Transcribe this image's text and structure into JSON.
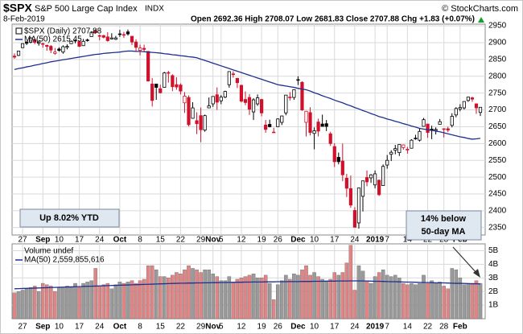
{
  "header": {
    "symbol": "$SPX",
    "name": "S&P 500 Large Cap Index",
    "exchange": "INDX",
    "date": "8-Feb-2019",
    "quote": "Open 2692.36 High 2708.07 Low 2681.83 Close 2707.88 Chg +1.83 (+0.07%)",
    "credit": "© StockCharts.com"
  },
  "chart_data": {
    "type": "candlestick",
    "legend": "$SPX (Daily) 2707.88",
    "up_color": "#000000",
    "down_color": "#d0112b",
    "x": [
      "2018-08-23",
      "2018-08-24",
      "2018-08-27",
      "2018-08-28",
      "2018-08-29",
      "2018-08-30",
      "2018-08-31",
      "2018-09-04",
      "2018-09-05",
      "2018-09-06",
      "2018-09-07",
      "2018-09-10",
      "2018-09-11",
      "2018-09-12",
      "2018-09-13",
      "2018-09-14",
      "2018-09-17",
      "2018-09-18",
      "2018-09-19",
      "2018-09-20",
      "2018-09-21",
      "2018-09-24",
      "2018-09-25",
      "2018-09-26",
      "2018-09-27",
      "2018-09-28",
      "2018-10-01",
      "2018-10-02",
      "2018-10-03",
      "2018-10-04",
      "2018-10-05",
      "2018-10-08",
      "2018-10-09",
      "2018-10-10",
      "2018-10-11",
      "2018-10-12",
      "2018-10-15",
      "2018-10-16",
      "2018-10-17",
      "2018-10-18",
      "2018-10-19",
      "2018-10-22",
      "2018-10-23",
      "2018-10-24",
      "2018-10-25",
      "2018-10-26",
      "2018-10-29",
      "2018-10-30",
      "2018-10-31",
      "2018-11-01",
      "2018-11-02",
      "2018-11-05",
      "2018-11-06",
      "2018-11-07",
      "2018-11-08",
      "2018-11-09",
      "2018-11-12",
      "2018-11-13",
      "2018-11-14",
      "2018-11-15",
      "2018-11-16",
      "2018-11-19",
      "2018-11-20",
      "2018-11-21",
      "2018-11-23",
      "2018-11-26",
      "2018-11-27",
      "2018-11-28",
      "2018-11-29",
      "2018-11-30",
      "2018-12-03",
      "2018-12-04",
      "2018-12-06",
      "2018-12-07",
      "2018-12-10",
      "2018-12-11",
      "2018-12-12",
      "2018-12-13",
      "2018-12-14",
      "2018-12-17",
      "2018-12-18",
      "2018-12-19",
      "2018-12-20",
      "2018-12-21",
      "2018-12-24",
      "2018-12-26",
      "2018-12-27",
      "2018-12-28",
      "2018-12-31",
      "2019-01-02",
      "2019-01-03",
      "2019-01-04",
      "2019-01-07",
      "2019-01-08",
      "2019-01-09",
      "2019-01-10",
      "2019-01-11",
      "2019-01-14",
      "2019-01-15",
      "2019-01-16",
      "2019-01-17",
      "2019-01-18",
      "2019-01-22",
      "2019-01-23",
      "2019-01-24",
      "2019-01-25",
      "2019-01-28",
      "2019-01-29",
      "2019-01-30",
      "2019-01-31",
      "2019-02-01",
      "2019-02-04",
      "2019-02-05",
      "2019-02-06",
      "2019-02-07",
      "2019-02-08"
    ],
    "open": [
      2860,
      2862,
      2885,
      2902,
      2901,
      2908,
      2898,
      2897,
      2892,
      2889,
      2868,
      2881,
      2872,
      2886,
      2897,
      2907,
      2903,
      2891,
      2906,
      2918,
      2936,
      2921,
      2921,
      2917,
      2911,
      2910,
      2926,
      2924,
      2932,
      2919,
      2902,
      2877,
      2883,
      2874,
      2777,
      2777,
      2763,
      2767,
      2811,
      2802,
      2775,
      2774,
      2721,
      2737,
      2675,
      2668,
      2683,
      2640,
      2706,
      2718,
      2745,
      2727,
      2738,
      2775,
      2806,
      2794,
      2773,
      2731,
      2737,
      2694,
      2718,
      2731,
      2655,
      2657,
      2634,
      2650,
      2663,
      2691,
      2736,
      2737,
      2790,
      2782,
      2663,
      2692,
      2630,
      2664,
      2658,
      2659,
      2629,
      2591,
      2559,
      2548,
      2497,
      2466,
      2401,
      2364,
      2443,
      2499,
      2498,
      2477,
      2491,
      2475,
      2536,
      2568,
      2580,
      2573,
      2588,
      2581,
      2586,
      2614,
      2610,
      2651,
      2658,
      2643,
      2639,
      2657,
      2644,
      2644,
      2654,
      2685,
      2703,
      2706,
      2728,
      2736,
      2718,
      2692.36
    ],
    "high": [
      2868,
      2876,
      2898,
      2904,
      2916,
      2912,
      2907,
      2900,
      2894,
      2893,
      2884,
      2886,
      2892,
      2895,
      2906,
      2909,
      2905,
      2911,
      2912,
      2934,
      2940,
      2924,
      2923,
      2931,
      2928,
      2920,
      2938,
      2932,
      2939,
      2919,
      2910,
      2894,
      2894,
      2874,
      2795,
      2777,
      2775,
      2813,
      2816,
      2806,
      2797,
      2779,
      2753,
      2743,
      2723,
      2693,
      2707,
      2686,
      2737,
      2741,
      2767,
      2744,
      2757,
      2815,
      2815,
      2795,
      2775,
      2755,
      2747,
      2735,
      2746,
      2733,
      2670,
      2671,
      2647,
      2675,
      2683,
      2744,
      2753,
      2760,
      2800,
      2785,
      2697,
      2708,
      2648,
      2674,
      2686,
      2670,
      2635,
      2601,
      2573,
      2600,
      2510,
      2505,
      2411,
      2468,
      2489,
      2520,
      2509,
      2520,
      2493,
      2538,
      2566,
      2580,
      2596,
      2597,
      2597,
      2590,
      2613,
      2626,
      2645,
      2676,
      2658,
      2653,
      2648,
      2673,
      2645,
      2650,
      2690,
      2708,
      2717,
      2725,
      2739,
      2739,
      2719,
      2708.07
    ],
    "low": [
      2852,
      2860,
      2884,
      2893,
      2898,
      2895,
      2891,
      2885,
      2876,
      2869,
      2864,
      2873,
      2867,
      2880,
      2896,
      2898,
      2887,
      2890,
      2903,
      2918,
      2926,
      2907,
      2913,
      2903,
      2910,
      2908,
      2917,
      2914,
      2921,
      2893,
      2874,
      2862,
      2874,
      2784,
      2710,
      2730,
      2749,
      2767,
      2781,
      2756,
      2760,
      2746,
      2691,
      2651,
      2674,
      2628,
      2604,
      2635,
      2706,
      2709,
      2700,
      2717,
      2735,
      2766,
      2796,
      2765,
      2722,
      2714,
      2685,
      2670,
      2712,
      2681,
      2632,
      2648,
      2632,
      2650,
      2655,
      2684,
      2728,
      2730,
      2774,
      2697,
      2621,
      2624,
      2583,
      2621,
      2651,
      2637,
      2593,
      2530,
      2538,
      2488,
      2441,
      2409,
      2351,
      2347,
      2398,
      2473,
      2483,
      2467,
      2444,
      2474,
      2525,
      2548,
      2568,
      2563,
      2582,
      2570,
      2585,
      2611,
      2606,
      2651,
      2617,
      2613,
      2627,
      2657,
      2618,
      2634,
      2648,
      2678,
      2696,
      2701,
      2724,
      2724,
      2688,
      2681.83
    ],
    "close": [
      2857,
      2875,
      2897,
      2898,
      2914,
      2901,
      2902,
      2897,
      2889,
      2878,
      2872,
      2877,
      2888,
      2889,
      2904,
      2905,
      2889,
      2904,
      2908,
      2931,
      2930,
      2919,
      2916,
      2906,
      2914,
      2914,
      2925,
      2923,
      2926,
      2902,
      2886,
      2884,
      2880,
      2786,
      2728,
      2767,
      2751,
      2810,
      2809,
      2769,
      2768,
      2756,
      2741,
      2656,
      2706,
      2659,
      2641,
      2683,
      2712,
      2740,
      2723,
      2738,
      2755,
      2814,
      2807,
      2781,
      2726,
      2722,
      2702,
      2730,
      2736,
      2691,
      2642,
      2650,
      2633,
      2673,
      2682,
      2744,
      2738,
      2760,
      2790,
      2700,
      2696,
      2633,
      2638,
      2637,
      2651,
      2651,
      2600,
      2546,
      2546,
      2507,
      2467,
      2417,
      2351,
      2468,
      2489,
      2486,
      2507,
      2510,
      2448,
      2532,
      2550,
      2574,
      2585,
      2597,
      2596,
      2583,
      2610,
      2616,
      2636,
      2671,
      2633,
      2639,
      2642,
      2665,
      2644,
      2640,
      2681,
      2704,
      2707,
      2725,
      2738,
      2732,
      2706,
      2707.88
    ],
    "ma": {
      "name": "MA(50) 2615.45",
      "color": "#1f2f8f",
      "values": [
        2820,
        2823,
        2825,
        2828,
        2830,
        2833,
        2835,
        2838,
        2840,
        2843,
        2845,
        2847,
        2849,
        2851,
        2853,
        2855,
        2857,
        2859,
        2861,
        2863,
        2865,
        2866,
        2868,
        2869,
        2870,
        2871,
        2872,
        2874,
        2875,
        2875,
        2874,
        2874,
        2873,
        2872,
        2871,
        2870,
        2869,
        2867,
        2866,
        2864,
        2863,
        2861,
        2860,
        2858,
        2857,
        2855,
        2851,
        2847,
        2843,
        2839,
        2835,
        2831,
        2827,
        2823,
        2819,
        2815,
        2811,
        2807,
        2803,
        2799,
        2795,
        2791,
        2787,
        2783,
        2779,
        2775,
        2773,
        2771,
        2769,
        2767,
        2764,
        2762,
        2760,
        2756,
        2751,
        2747,
        2742,
        2738,
        2734,
        2729,
        2725,
        2721,
        2716,
        2712,
        2707,
        2703,
        2698,
        2694,
        2689,
        2685,
        2680,
        2677,
        2673,
        2670,
        2666,
        2663,
        2659,
        2656,
        2652,
        2649,
        2645,
        2643,
        2641,
        2639,
        2637,
        2635,
        2632,
        2629,
        2626,
        2623,
        2620,
        2618,
        2615,
        2613,
        2614,
        2615.45
      ]
    },
    "ylim": [
      2328,
      2955
    ],
    "yticks": [
      2350,
      2400,
      2450,
      2500,
      2550,
      2600,
      2650,
      2700,
      2750,
      2800,
      2850,
      2900,
      2950
    ],
    "xticks": [
      {
        "value": "2018-08-27",
        "label": "27"
      },
      {
        "value": "2018-09-04",
        "label": "Sep"
      },
      {
        "value": "2018-09-10",
        "label": "10"
      },
      {
        "value": "2018-09-17",
        "label": "17"
      },
      {
        "value": "2018-09-24",
        "label": "24"
      },
      {
        "value": "2018-10-01",
        "label": "Oct"
      },
      {
        "value": "2018-10-08",
        "label": "8"
      },
      {
        "value": "2018-10-15",
        "label": "15"
      },
      {
        "value": "2018-10-22",
        "label": "22"
      },
      {
        "value": "2018-10-29",
        "label": "29"
      },
      {
        "value": "2018-11-01",
        "label": "Nov"
      },
      {
        "value": "2018-11-05",
        "label": "5"
      },
      {
        "value": "2018-11-12",
        "label": "12"
      },
      {
        "value": "2018-11-19",
        "label": "19"
      },
      {
        "value": "2018-11-26",
        "label": "26"
      },
      {
        "value": "2018-12-03",
        "label": "Dec"
      },
      {
        "value": "2018-12-10",
        "label": "10"
      },
      {
        "value": "2018-12-17",
        "label": "17"
      },
      {
        "value": "2018-12-24",
        "label": "24"
      },
      {
        "value": "2019-01-02",
        "label": "2019"
      },
      {
        "value": "2019-01-07",
        "label": "7"
      },
      {
        "value": "2019-01-14",
        "label": "14"
      },
      {
        "value": "2019-01-22",
        "label": "22"
      },
      {
        "value": "2019-01-28",
        "label": "28"
      },
      {
        "value": "2019-02-01",
        "label": "Feb"
      }
    ],
    "grid": true,
    "annotations": {
      "ytd": "Up 8.02% YTD",
      "ma_note": [
        "14% below",
        "50-day MA"
      ]
    },
    "volume": {
      "type": "bar",
      "name": "Volume undef",
      "up_color": "#9a9a9a",
      "down_color": "#e08585",
      "values": [
        1900000000.0,
        2000000000.0,
        2100000000.0,
        2200000000.0,
        2300000000.0,
        2400000000.0,
        2000000000.0,
        2600000000.0,
        2500000000.0,
        2400000000.0,
        2000000000.0,
        2300000000.0,
        2300000000.0,
        2400000000.0,
        2300000000.0,
        2600000000.0,
        2300000000.0,
        2600000000.0,
        2700000000.0,
        2800000000.0,
        3700000000.0,
        2400000000.0,
        2500000000.0,
        2600000000.0,
        2200000000.0,
        2500000000.0,
        2700000000.0,
        2600000000.0,
        2700000000.0,
        2800000000.0,
        2600000000.0,
        2800000000.0,
        2900000000.0,
        3900000000.0,
        3900000000.0,
        3600000000.0,
        3100000000.0,
        3100000000.0,
        3000000000.0,
        3200000000.0,
        3400000000.0,
        3300000000.0,
        3600000000.0,
        3900000000.0,
        3700000000.0,
        3600000000.0,
        3400000000.0,
        3600000000.0,
        3600000000.0,
        3300000000.0,
        3100000000.0,
        2800000000.0,
        2800000000.0,
        3100000000.0,
        2700000000.0,
        2900000000.0,
        3000000000.0,
        3100000000.0,
        3200000000.0,
        3300000000.0,
        3000000000.0,
        3000000000.0,
        3200000000.0,
        2600000000.0,
        1400000000.0,
        2500000000.0,
        2800000000.0,
        3200000000.0,
        2900000000.0,
        3300000000.0,
        3200000000.0,
        3600000000.0,
        3900000000.0,
        3200000000.0,
        3400000000.0,
        3100000000.0,
        2900000000.0,
        2700000000.0,
        2900000000.0,
        3400000000.0,
        3200000000.0,
        3400000000.0,
        4100000000.0,
        5400000000.0,
        2100000000.0,
        3900000000.0,
        3500000000.0,
        2800000000.0,
        2600000000.0,
        3100000000.0,
        3400000000.0,
        3600000000.0,
        3200000000.0,
        3100000000.0,
        3200000000.0,
        3000000000.0,
        2600000000.0,
        2500000000.0,
        2600000000.0,
        2500000000.0,
        2600000000.0,
        3200000000.0,
        2600000000.0,
        2800000000.0,
        2600000000.0,
        2700000000.0,
        2400000000.0,
        2200000000.0,
        3700000000.0,
        3600000000.0,
        3000000000.0,
        2500000000.0,
        2600000000.0,
        2600000000.0,
        2800000000.0,
        2600000000.0
      ],
      "ma": {
        "name": "MA(50) 2,559,855,616",
        "color": "#1f2f8f",
        "values": [
          2200000000.0,
          2210000000.0,
          2220000000.0,
          2230000000.0,
          2240000000.0,
          2250000000.0,
          2260000000.0,
          2270000000.0,
          2280000000.0,
          2290000000.0,
          2300000000.0,
          2310000000.0,
          2320000000.0,
          2330000000.0,
          2340000000.0,
          2350000000.0,
          2360000000.0,
          2370000000.0,
          2380000000.0,
          2390000000.0,
          2400000000.0,
          2410000000.0,
          2420000000.0,
          2430000000.0,
          2440000000.0,
          2450000000.0,
          2460000000.0,
          2470000000.0,
          2480000000.0,
          2490000000.0,
          2500000000.0,
          2510000000.0,
          2520000000.0,
          2530000000.0,
          2540000000.0,
          2550000000.0,
          2560000000.0,
          2570000000.0,
          2580000000.0,
          2590000000.0,
          2600000000.0,
          2610000000.0,
          2610000000.0,
          2620000000.0,
          2620000000.0,
          2630000000.0,
          2630000000.0,
          2640000000.0,
          2640000000.0,
          2650000000.0,
          2650000000.0,
          2660000000.0,
          2660000000.0,
          2670000000.0,
          2670000000.0,
          2680000000.0,
          2680000000.0,
          2690000000.0,
          2690000000.0,
          2700000000.0,
          2700000000.0,
          2700000000.0,
          2710000000.0,
          2710000000.0,
          2710000000.0,
          2720000000.0,
          2720000000.0,
          2720000000.0,
          2730000000.0,
          2730000000.0,
          2730000000.0,
          2740000000.0,
          2740000000.0,
          2740000000.0,
          2750000000.0,
          2750000000.0,
          2750000000.0,
          2760000000.0,
          2760000000.0,
          2760000000.0,
          2770000000.0,
          2770000000.0,
          2770000000.0,
          2780000000.0,
          2780000000.0,
          2780000000.0,
          2770000000.0,
          2770000000.0,
          2760000000.0,
          2750000000.0,
          2750000000.0,
          2740000000.0,
          2730000000.0,
          2720000000.0,
          2720000000.0,
          2710000000.0,
          2700000000.0,
          2690000000.0,
          2690000000.0,
          2680000000.0,
          2670000000.0,
          2660000000.0,
          2660000000.0,
          2650000000.0,
          2640000000.0,
          2630000000.0,
          2630000000.0,
          2620000000.0,
          2610000000.0,
          2600000000.0,
          2600000000.0,
          2590000000.0,
          2580000000.0,
          2570000000.0,
          2570000000.0,
          2559855616
        ]
      },
      "ylim": [
        0,
        5500000000.0
      ],
      "yticks": [
        {
          "value": 1000000000.0,
          "label": "1B"
        },
        {
          "value": 2000000000.0,
          "label": "2B"
        },
        {
          "value": 3000000000.0,
          "label": "3B"
        },
        {
          "value": 4000000000.0,
          "label": "4B"
        },
        {
          "value": 5000000000.0,
          "label": "5B"
        }
      ]
    }
  }
}
